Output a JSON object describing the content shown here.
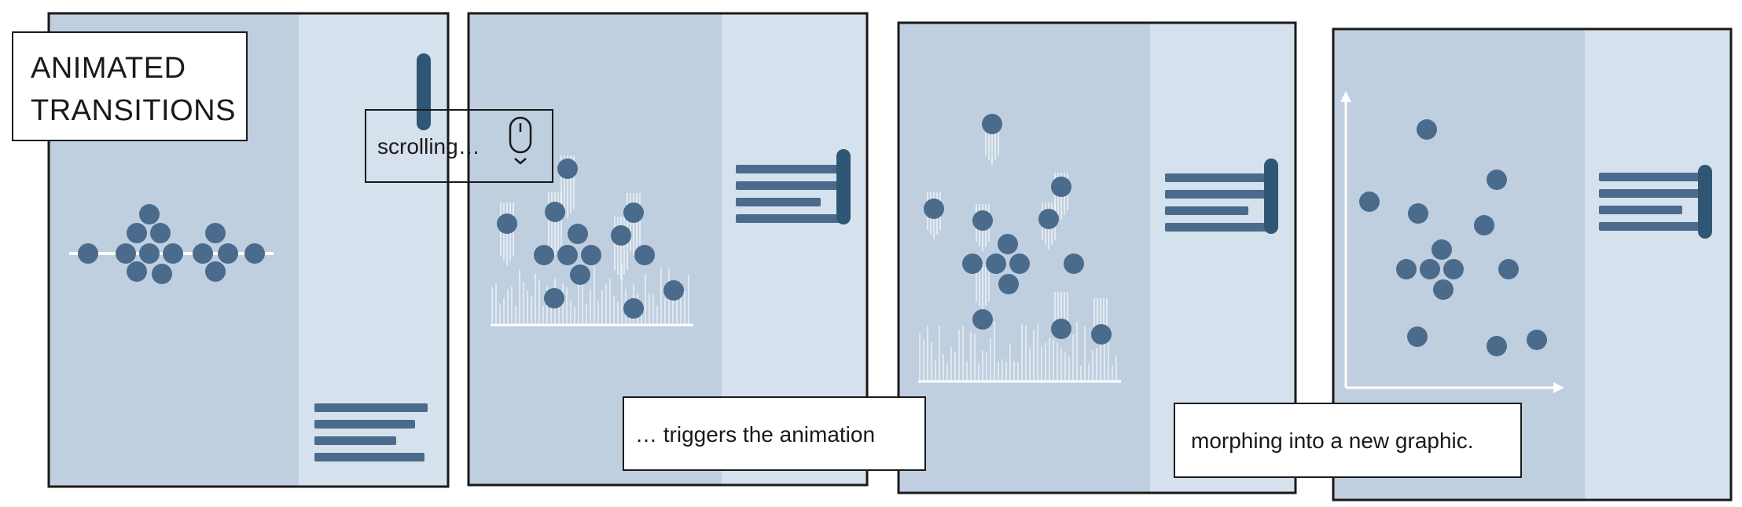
{
  "title": {
    "line1": "ANIMATED",
    "line2": "TRANSITIONS"
  },
  "captions": {
    "scrolling": "scrolling…",
    "triggers": "… triggers the animation",
    "morphing": "morphing into a new graphic."
  },
  "icons": {
    "mouse": "mouse-scroll-icon"
  },
  "colors": {
    "panel_left": "#bfcfdf",
    "panel_right": "#d5e1ec",
    "dot": "#4a6b8c",
    "scrollbar": "#2f5775",
    "text_line": "#4a6b8c",
    "outline": "#1a1a1a",
    "white": "#ffffff"
  }
}
